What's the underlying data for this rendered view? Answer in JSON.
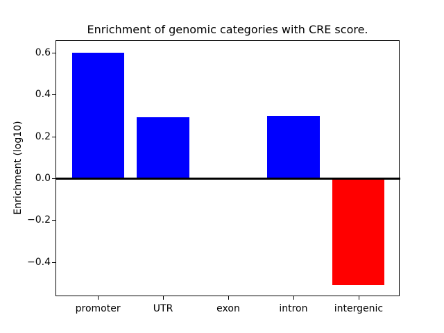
{
  "figure": {
    "background": "#ffffff"
  },
  "chart_data": {
    "type": "bar",
    "title": "Enrichment of genomic categories with CRE score.",
    "ylabel": "Enrichment (log10)",
    "xlabel": "",
    "categories": [
      "promoter",
      "UTR",
      "exon",
      "intron",
      "intergenic"
    ],
    "values": [
      0.601,
      0.291,
      0.0,
      0.297,
      -0.511
    ],
    "bar_colors": [
      "#0000ff",
      "#0000ff",
      "#0000ff",
      "#0000ff",
      "#ff0000"
    ],
    "positive_color": "#0000ff",
    "negative_color": "#ff0000",
    "axis_color": "#000000",
    "ylim": [
      -0.5667,
      0.6567
    ],
    "xlim": [
      -0.64,
      4.64
    ],
    "yticks": [
      0.6,
      0.4,
      0.2,
      0.0,
      -0.2,
      -0.4
    ],
    "ytick_labels": [
      "0.6",
      "0.4",
      "0.2",
      "0.0",
      "−0.2",
      "−0.4"
    ],
    "bar_width_fraction": 0.8,
    "zero_line": true,
    "grid": false,
    "legend": null
  }
}
